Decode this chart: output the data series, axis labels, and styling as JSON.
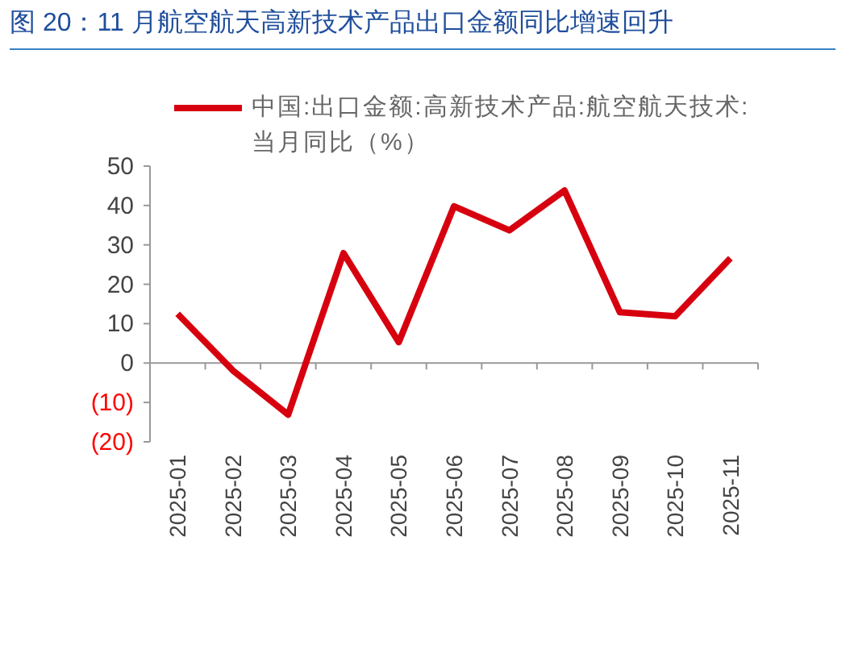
{
  "chart_data": {
    "type": "line",
    "title": "图 20：11 月航空航天高新技术产品出口金额同比增速回升",
    "categories": [
      "2025-01",
      "2025-02",
      "2025-03",
      "2025-04",
      "2025-05",
      "2025-06",
      "2025-07",
      "2025-08",
      "2025-09",
      "2025-10",
      "2025-11"
    ],
    "series": [
      {
        "name": "中国:出口金额:高新技术产品:航空航天技术:当月同比（%）",
        "color": "#d7000f",
        "values": [
          12.5,
          -1.9,
          -13.1,
          27.9,
          5.3,
          39.8,
          33.7,
          43.8,
          12.9,
          11.9,
          26.6
        ]
      }
    ],
    "ylim": [
      -20,
      50
    ],
    "yticks": [
      50,
      40,
      30,
      20,
      10,
      0,
      {
        "value": -10,
        "label": "(10)"
      },
      {
        "value": -20,
        "label": "(20)"
      }
    ],
    "legend": "top",
    "marker": "none",
    "line_style": "solid"
  }
}
